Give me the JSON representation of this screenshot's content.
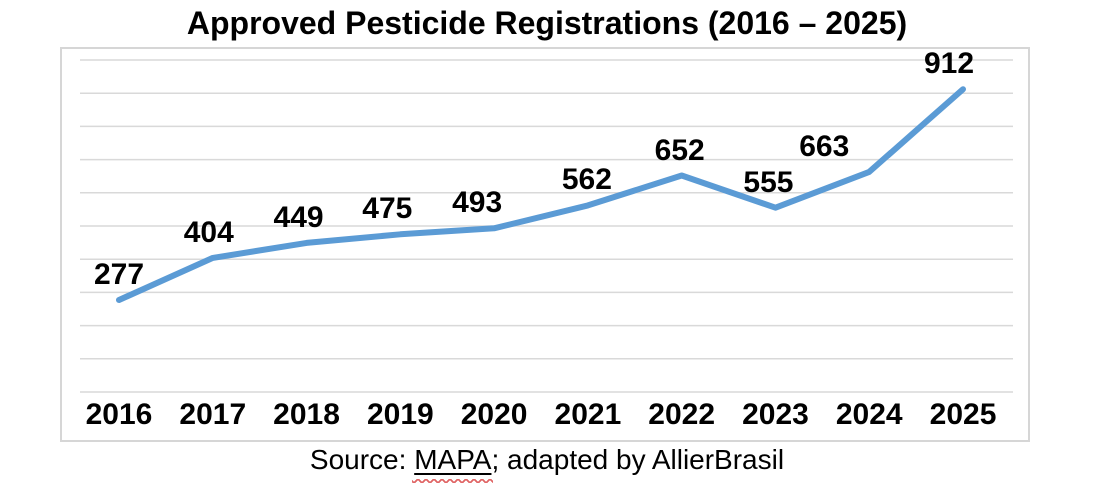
{
  "chart": {
    "title": "Approved Pesticide Registrations (2016 – 2025)",
    "source_prefix": "Source: ",
    "source_term": "MAPA",
    "source_suffix": "; adapted by AllierBrasil"
  },
  "chart_data": {
    "type": "line",
    "title": "Approved Pesticide Registrations (2016 – 2025)",
    "categories": [
      "2016",
      "2017",
      "2018",
      "2019",
      "2020",
      "2021",
      "2022",
      "2023",
      "2024",
      "2025"
    ],
    "values": [
      277,
      404,
      449,
      475,
      493,
      562,
      652,
      555,
      663,
      912
    ],
    "xlabel": "",
    "ylabel": "",
    "ylim": [
      0,
      1000
    ],
    "grid": "horizontal",
    "grid_interval": 100,
    "legend": "none",
    "data_labels": true,
    "source_caption": "Source: MAPA; adapted by AllierBrasil",
    "colors": {
      "line": "#5b9bd5",
      "gridline": "#d9d9d9",
      "frame_border": "#d6d6d6",
      "label_text": "#000000",
      "spellcheck_underline": "#e06666"
    }
  }
}
